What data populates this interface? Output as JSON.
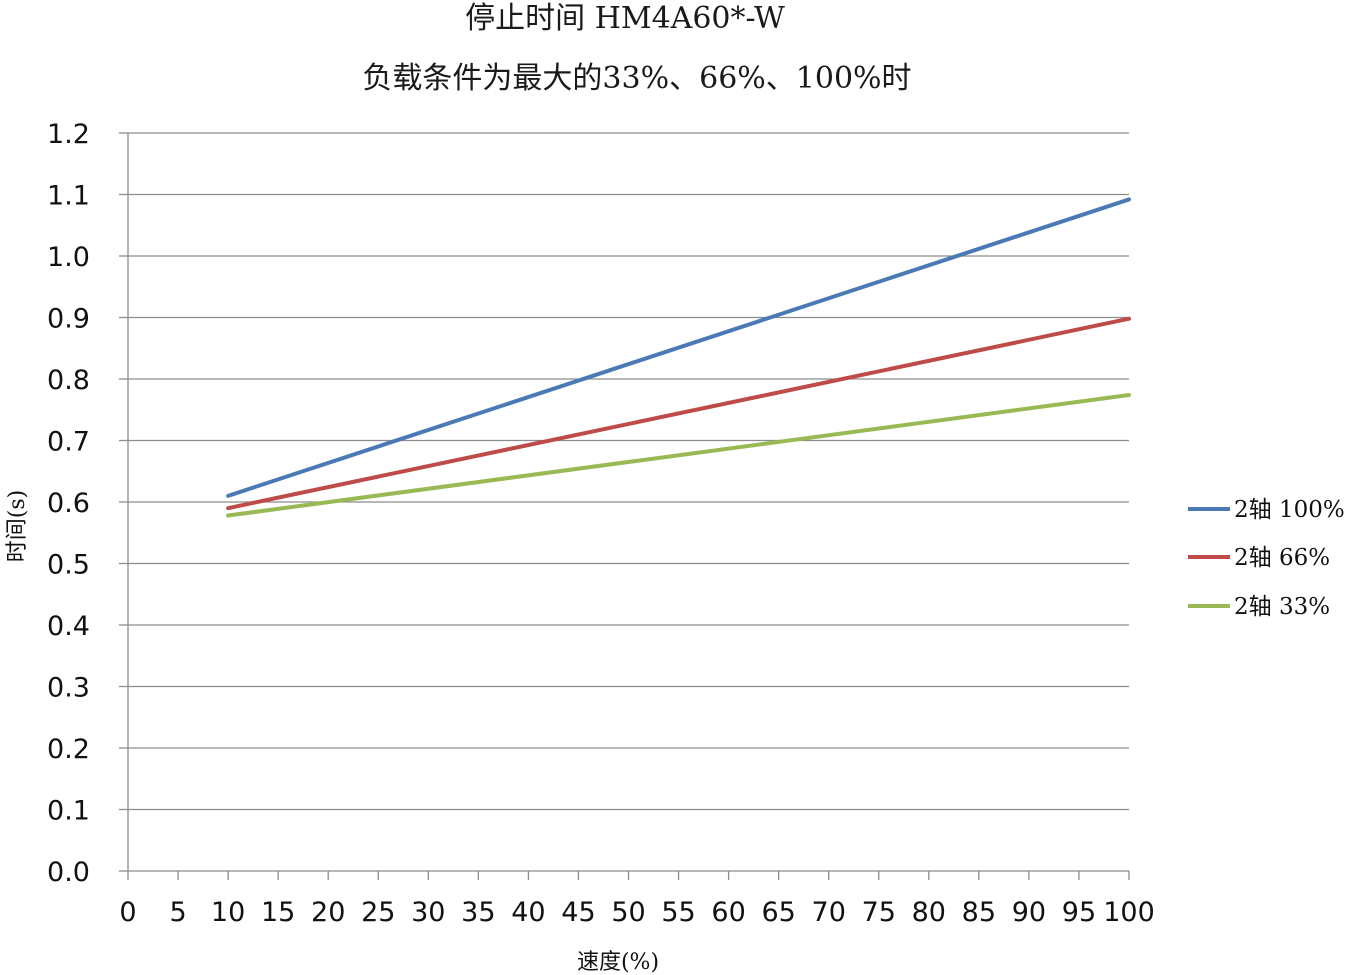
{
  "chart_data": {
    "type": "line",
    "title": "停止时间 HM4A60*-W",
    "subtitle": "负载条件为最大的33%、66%、100%时",
    "xlabel": "速度(%)",
    "ylabel": "时间(s)",
    "xlim": [
      0,
      100
    ],
    "ylim": [
      0,
      1.2
    ],
    "x_ticks": [
      "0",
      "5",
      "10",
      "15",
      "20",
      "25",
      "30",
      "35",
      "40",
      "45",
      "50",
      "55",
      "60",
      "65",
      "70",
      "75",
      "80",
      "85",
      "90",
      "95",
      "100"
    ],
    "y_ticks": [
      "0.0",
      "0.1",
      "0.2",
      "0.3",
      "0.4",
      "0.5",
      "0.6",
      "0.7",
      "0.8",
      "0.9",
      "1.0",
      "1.1",
      "1.2"
    ],
    "grid": "horizontal",
    "legend_position": "right",
    "series": [
      {
        "name": "2轴 100%",
        "color": "#4a7ab5",
        "x": [
          10,
          100
        ],
        "y": [
          0.61,
          1.092
        ]
      },
      {
        "name": "2轴 66%",
        "color": "#be4b48",
        "x": [
          10,
          100
        ],
        "y": [
          0.59,
          0.898
        ]
      },
      {
        "name": "2轴 33%",
        "color": "#98b954",
        "x": [
          10,
          100
        ],
        "y": [
          0.578,
          0.774
        ]
      }
    ]
  }
}
